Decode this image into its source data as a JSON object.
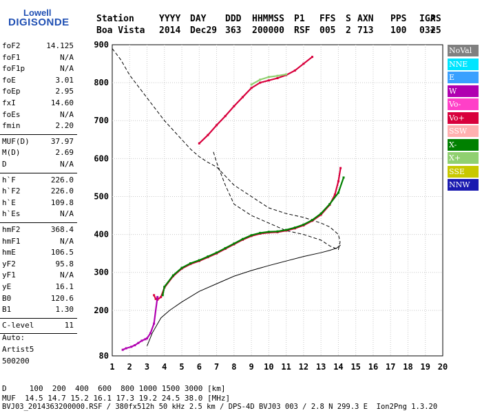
{
  "logo": {
    "top": "Lowell",
    "bottom": "DIGISONDE"
  },
  "header": {
    "labels": [
      "Station",
      "YYYY",
      "DAY",
      "DDD",
      "HHMMSS",
      "P1",
      "FFS",
      "S",
      "AXN",
      "PPS",
      "IGA",
      "PS"
    ],
    "values": [
      "Boa Vista",
      "2014",
      "Dec29",
      "363",
      "200000",
      "RSF",
      "005",
      "2",
      "713",
      "100",
      "03+",
      "25"
    ]
  },
  "params": [
    {
      "k": "foF2",
      "v": "14.125"
    },
    {
      "k": "foF1",
      "v": "N/A"
    },
    {
      "k": "foF1p",
      "v": "N/A"
    },
    {
      "k": "foE",
      "v": "3.01"
    },
    {
      "k": "foEp",
      "v": "2.95"
    },
    {
      "k": "fxI",
      "v": "14.60"
    },
    {
      "k": "foEs",
      "v": "N/A"
    },
    {
      "k": "fmin",
      "v": "2.20"
    },
    {
      "k": "MUF(D)",
      "v": "37.97"
    },
    {
      "k": "M(D)",
      "v": "2.69"
    },
    {
      "k": "D",
      "v": "N/A"
    },
    {
      "k": "h`F",
      "v": "226.0"
    },
    {
      "k": "h`F2",
      "v": "226.0"
    },
    {
      "k": "h`E",
      "v": "109.8"
    },
    {
      "k": "h`Es",
      "v": "N/A"
    },
    {
      "k": "hmF2",
      "v": "368.4"
    },
    {
      "k": "hmF1",
      "v": "N/A"
    },
    {
      "k": "hmE",
      "v": "106.5"
    },
    {
      "k": "yF2",
      "v": "95.8"
    },
    {
      "k": "yF1",
      "v": "N/A"
    },
    {
      "k": "yE",
      "v": "16.1"
    },
    {
      "k": "B0",
      "v": "120.6"
    },
    {
      "k": "B1",
      "v": "1.30"
    },
    {
      "k": "C-level",
      "v": "11"
    }
  ],
  "side_notes": [
    "Auto:",
    "Artist5",
    "500200"
  ],
  "legend": [
    {
      "label": "NoVal",
      "bg": "#808080",
      "fg": "#ffffff"
    },
    {
      "label": "NNE",
      "bg": "#00e5ff",
      "fg": "#ffffff"
    },
    {
      "label": "E",
      "bg": "#39a0ff",
      "fg": "#ffffff"
    },
    {
      "label": "W",
      "bg": "#b000b0",
      "fg": "#ffffff"
    },
    {
      "label": "Vo-",
      "bg": "#ff40c8",
      "fg": "#ffffff"
    },
    {
      "label": "Vo+",
      "bg": "#d8003c",
      "fg": "#ffffff"
    },
    {
      "label": "SSW",
      "bg": "#ffb0b0",
      "fg": "#ffffff"
    },
    {
      "label": "X-",
      "bg": "#008000",
      "fg": "#ffffff"
    },
    {
      "label": "X+",
      "bg": "#90d070",
      "fg": "#ffffff"
    },
    {
      "label": "SSE",
      "bg": "#c8c800",
      "fg": "#ffffff"
    },
    {
      "label": "NNW",
      "bg": "#1a1ab0",
      "fg": "#ffffff"
    }
  ],
  "footer": {
    "line1": "D     100  200  400  600  800 1000 1500 3000 [km]",
    "line2": "MUF  14.5 14.7 15.2 16.1 17.3 19.2 24.5 38.0 [MHz]",
    "line3": "BVJ03_2014363200000.RSF / 380fx512h 50 kHz 2.5 km / DPS-4D BVJ03 003 / 2.8 N 299.3 E  Ion2Png 1.3.20"
  },
  "chart_data": {
    "type": "scatter",
    "xlim": [
      1,
      20
    ],
    "ylim": [
      80,
      900
    ],
    "xticks": [
      1,
      2,
      3,
      4,
      5,
      6,
      7,
      8,
      9,
      10,
      11,
      12,
      13,
      14,
      15,
      16,
      17,
      18,
      19,
      20
    ],
    "yticks": [
      80,
      200,
      300,
      400,
      500,
      600,
      700,
      800,
      900
    ],
    "grid": true,
    "series": [
      {
        "name": "Vo+",
        "color": "#d8003c",
        "x": [
          3.4,
          3.5,
          3.6,
          3.8,
          4.0,
          4.5,
          5.0,
          5.5,
          6.0,
          6.5,
          7.0,
          7.5,
          8.0,
          8.5,
          9.0,
          9.5,
          10.0,
          10.5,
          11.0,
          11.5,
          12.0,
          12.5,
          13.0,
          13.5,
          13.8,
          14.0,
          14.125
        ],
        "y": [
          240,
          230,
          228,
          235,
          260,
          290,
          310,
          322,
          330,
          340,
          350,
          362,
          374,
          386,
          396,
          402,
          405,
          406,
          410,
          416,
          424,
          436,
          452,
          478,
          505,
          540,
          575
        ]
      },
      {
        "name": "X-",
        "color": "#008000",
        "x": [
          3.9,
          4.0,
          4.5,
          5.0,
          5.5,
          6.0,
          6.5,
          7.0,
          7.5,
          8.0,
          8.5,
          9.0,
          9.5,
          10.0,
          10.5,
          11.0,
          11.5,
          12.0,
          12.5,
          13.0,
          13.5,
          14.0,
          14.3
        ],
        "y": [
          240,
          262,
          292,
          312,
          324,
          332,
          342,
          352,
          364,
          376,
          388,
          398,
          404,
          407,
          408,
          412,
          418,
          426,
          438,
          455,
          480,
          510,
          550
        ]
      },
      {
        "name": "Vo+",
        "color": "#d8003c",
        "x": [
          6.0,
          6.5,
          7.0,
          7.5,
          8.0,
          8.5,
          9.0,
          9.5,
          10.0,
          10.5,
          11.0,
          11.5,
          12.0,
          12.5
        ],
        "y": [
          640,
          662,
          688,
          712,
          738,
          762,
          786,
          800,
          806,
          812,
          820,
          832,
          850,
          868
        ]
      },
      {
        "name": "X+",
        "color": "#90d070",
        "x": [
          9.0,
          9.5,
          10.0,
          10.5,
          11.0
        ],
        "y": [
          795,
          808,
          815,
          818,
          822
        ]
      },
      {
        "name": "W",
        "color": "#b000b0",
        "x": [
          1.6,
          1.8,
          2.1,
          2.3,
          2.5,
          2.7,
          2.9,
          3.0,
          3.2,
          3.4,
          3.6
        ],
        "y": [
          96,
          100,
          104,
          108,
          114,
          120,
          124,
          126,
          140,
          165,
          235
        ]
      }
    ],
    "profile": {
      "x": [
        3.0,
        3.3,
        3.8,
        4.3,
        5.0,
        6.0,
        7.0,
        8.0,
        9.0,
        10.0,
        11.0,
        12.0,
        13.0,
        13.5,
        13.9,
        14.125
      ],
      "y": [
        106,
        140,
        180,
        200,
        222,
        250,
        270,
        290,
        305,
        318,
        330,
        342,
        352,
        358,
        364,
        372
      ]
    },
    "muf_curve": {
      "x": [
        1.0,
        1.5,
        2.0,
        2.5,
        3.0,
        3.5,
        4.0,
        4.5,
        5.0,
        5.5,
        6.0,
        6.5,
        7.0,
        8.0,
        9.0,
        10.0,
        11.0,
        12.0,
        13.0,
        13.5,
        14.0,
        14.1,
        14.0,
        13.5,
        13.0,
        12.0,
        11.0,
        10.0,
        9.0,
        8.0,
        7.5,
        7.0,
        6.8
      ],
      "y": [
        890,
        860,
        820,
        790,
        760,
        730,
        700,
        675,
        650,
        625,
        605,
        590,
        578,
        530,
        500,
        470,
        455,
        445,
        430,
        420,
        400,
        380,
        360,
        370,
        385,
        400,
        410,
        430,
        450,
        480,
        530,
        590,
        620
      ]
    }
  }
}
